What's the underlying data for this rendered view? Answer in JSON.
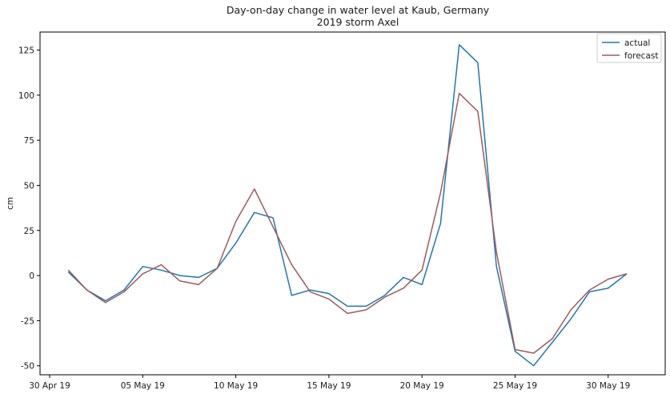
{
  "chart_data": {
    "type": "line",
    "title": "Day-on-day change in water level at Kaub, Germany",
    "subtitle": "2019 storm Axel",
    "xlabel": "",
    "ylabel": "cm",
    "x": [
      "2019-05-01",
      "2019-05-02",
      "2019-05-03",
      "2019-05-04",
      "2019-05-05",
      "2019-05-06",
      "2019-05-07",
      "2019-05-08",
      "2019-05-09",
      "2019-05-10",
      "2019-05-11",
      "2019-05-12",
      "2019-05-13",
      "2019-05-14",
      "2019-05-15",
      "2019-05-16",
      "2019-05-17",
      "2019-05-18",
      "2019-05-19",
      "2019-05-20",
      "2019-05-21",
      "2019-05-22",
      "2019-05-23",
      "2019-05-24",
      "2019-05-25",
      "2019-05-26",
      "2019-05-27",
      "2019-05-28",
      "2019-05-29",
      "2019-05-30",
      "2019-05-31"
    ],
    "xlim": [
      "2019-04-30",
      "2019-05-31"
    ],
    "ylim": [
      -55,
      135
    ],
    "x_ticks": [
      {
        "date": "2019-04-30",
        "label": "30 Apr 19"
      },
      {
        "date": "2019-05-05",
        "label": "05 May 19"
      },
      {
        "date": "2019-05-10",
        "label": "10 May 19"
      },
      {
        "date": "2019-05-15",
        "label": "15 May 19"
      },
      {
        "date": "2019-05-20",
        "label": "20 May 19"
      },
      {
        "date": "2019-05-25",
        "label": "25 May 19"
      },
      {
        "date": "2019-05-30",
        "label": "30 May 19"
      }
    ],
    "y_ticks": [
      125,
      100,
      75,
      50,
      25,
      0,
      -25,
      -50
    ],
    "grid": false,
    "legend_position": "top-right",
    "series": [
      {
        "name": "actual",
        "color": "#1f77b4",
        "values": [
          2,
          -8,
          -14,
          -8,
          5,
          3,
          0,
          -1,
          4,
          18,
          35,
          32,
          -11,
          -8,
          -10,
          -17,
          -17,
          -11,
          -1,
          -5,
          29,
          128,
          118,
          5,
          -42,
          -50,
          -37,
          -24,
          -9,
          -7,
          1
        ]
      },
      {
        "name": "forecast",
        "color": "#a05a5a",
        "values": [
          3,
          -8,
          -15,
          -9,
          1,
          6,
          -3,
          -5,
          4,
          30,
          48,
          27,
          6,
          -9,
          -13,
          -21,
          -19,
          -12,
          -7,
          3,
          46,
          101,
          91,
          13,
          -41,
          -43,
          -35,
          -19,
          -8,
          -2,
          1
        ]
      }
    ]
  }
}
